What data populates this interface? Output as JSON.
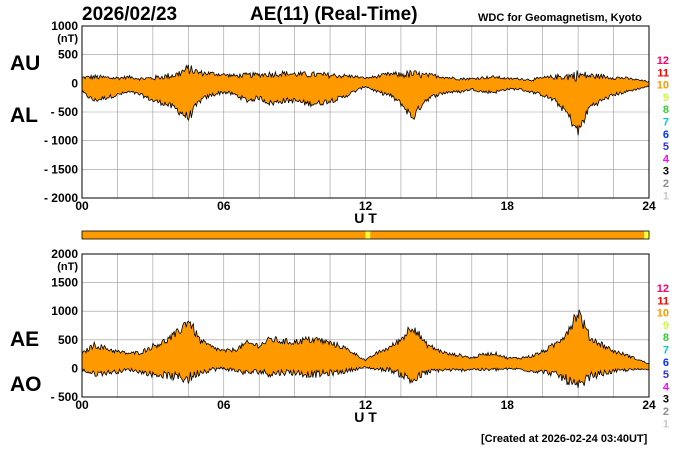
{
  "header": {
    "date": "2026/02/23",
    "title": "AE(11) (Real-Time)",
    "institution": "WDC for Geomagnetism, Kyoto"
  },
  "footer": {
    "created": "[Created at 2026-02-24 03:40UT]"
  },
  "colors": {
    "fill": "#ff9900",
    "status_orange": "#ff9900",
    "status_yellow": "#ffff33",
    "grid": "#9a9a9a",
    "station_count_colors": [
      "#c8c8c8",
      "#8c8c8c",
      "#000000",
      "#ff00ff",
      "#3333cc",
      "#0033ff",
      "#00cccc",
      "#33cc33",
      "#ccff33",
      "#ff9900",
      "#ff0000",
      "#ff0066"
    ]
  },
  "station_counts": [
    "12",
    "11",
    "10",
    "9",
    "8",
    "7",
    "6",
    "5",
    "4",
    "3",
    "2",
    "1"
  ],
  "chart_data": [
    {
      "type": "area",
      "panel": "AU/AL",
      "side_labels": [
        "AU",
        "AL"
      ],
      "units": "(nT)",
      "xlabel": "U T",
      "x_ticks": [
        "00",
        "06",
        "12",
        "18",
        "24"
      ],
      "xlim": [
        0,
        24
      ],
      "ylim": [
        -2000,
        1000
      ],
      "y_ticks": [
        "1000",
        "500",
        "0",
        "- 500",
        "- 1000",
        "- 1500",
        "- 2000"
      ],
      "grid": true,
      "series": [
        {
          "label": "AU",
          "x": [
            0,
            0.5,
            1,
            1.5,
            2,
            2.5,
            3,
            3.5,
            4,
            4.5,
            5,
            5.5,
            6,
            6.5,
            7,
            7.5,
            8,
            8.5,
            9,
            9.5,
            10,
            10.5,
            11,
            11.5,
            12,
            12.5,
            13,
            13.5,
            14,
            14.5,
            15,
            15.5,
            16,
            16.5,
            17,
            17.5,
            18,
            18.5,
            19,
            19.5,
            20,
            20.5,
            21,
            21.5,
            22,
            22.5,
            23,
            23.5,
            24
          ],
          "values": [
            100,
            110,
            100,
            90,
            110,
            80,
            90,
            120,
            150,
            250,
            180,
            170,
            150,
            130,
            140,
            150,
            160,
            170,
            160,
            150,
            150,
            140,
            130,
            120,
            90,
            120,
            160,
            150,
            160,
            140,
            130,
            100,
            80,
            80,
            100,
            110,
            80,
            80,
            60,
            90,
            110,
            120,
            140,
            130,
            120,
            100,
            90,
            60,
            30
          ]
        },
        {
          "label": "AL",
          "x": [
            0,
            0.5,
            1,
            1.5,
            2,
            2.5,
            3,
            3.5,
            4,
            4.5,
            5,
            5.5,
            6,
            6.5,
            7,
            7.5,
            8,
            8.5,
            9,
            9.5,
            10,
            10.5,
            11,
            11.5,
            12,
            12.5,
            13,
            13.5,
            14,
            14.5,
            15,
            15.5,
            16,
            16.5,
            17,
            17.5,
            18,
            18.5,
            19,
            19.5,
            20,
            20.5,
            21,
            21.5,
            22,
            22.5,
            23,
            23.5,
            24
          ],
          "values": [
            -150,
            -300,
            -250,
            -200,
            -150,
            -200,
            -300,
            -350,
            -450,
            -600,
            -300,
            -200,
            -150,
            -200,
            -300,
            -250,
            -350,
            -300,
            -300,
            -350,
            -350,
            -300,
            -250,
            -150,
            -50,
            -150,
            -200,
            -350,
            -600,
            -300,
            -200,
            -150,
            -150,
            -100,
            -150,
            -150,
            -100,
            -100,
            -150,
            -200,
            -300,
            -500,
            -850,
            -400,
            -300,
            -200,
            -150,
            -100,
            -50
          ]
        }
      ]
    },
    {
      "type": "area",
      "panel": "AE/AO",
      "side_labels": [
        "AE",
        "AO"
      ],
      "units": "(nT)",
      "xlabel": "U T",
      "x_ticks": [
        "00",
        "06",
        "12",
        "18",
        "24"
      ],
      "xlim": [
        0,
        24
      ],
      "ylim": [
        -500,
        2000
      ],
      "y_ticks": [
        "2000",
        "1500",
        "1000",
        "500",
        "0",
        "- 500"
      ],
      "grid": true,
      "series": [
        {
          "label": "AE",
          "x": [
            0,
            0.5,
            1,
            1.5,
            2,
            2.5,
            3,
            3.5,
            4,
            4.5,
            5,
            5.5,
            6,
            6.5,
            7,
            7.5,
            8,
            8.5,
            9,
            9.5,
            10,
            10.5,
            11,
            11.5,
            12,
            12.5,
            13,
            13.5,
            14,
            14.5,
            15,
            15.5,
            16,
            16.5,
            17,
            17.5,
            18,
            18.5,
            19,
            19.5,
            20,
            20.5,
            21,
            21.5,
            22,
            22.5,
            23,
            23.5,
            24
          ],
          "values": [
            250,
            410,
            350,
            290,
            260,
            280,
            390,
            470,
            600,
            850,
            480,
            370,
            300,
            330,
            440,
            400,
            510,
            470,
            460,
            500,
            500,
            440,
            380,
            270,
            140,
            270,
            360,
            500,
            760,
            440,
            330,
            250,
            230,
            180,
            250,
            260,
            180,
            180,
            210,
            290,
            410,
            620,
            990,
            530,
            420,
            300,
            240,
            160,
            80
          ]
        },
        {
          "label": "AO",
          "x": [
            0,
            0.5,
            1,
            1.5,
            2,
            2.5,
            3,
            3.5,
            4,
            4.5,
            5,
            5.5,
            6,
            6.5,
            7,
            7.5,
            8,
            8.5,
            9,
            9.5,
            10,
            10.5,
            11,
            11.5,
            12,
            12.5,
            13,
            13.5,
            14,
            14.5,
            15,
            15.5,
            16,
            16.5,
            17,
            17.5,
            18,
            18.5,
            19,
            19.5,
            20,
            20.5,
            21,
            21.5,
            22,
            22.5,
            23,
            23.5,
            24
          ],
          "values": [
            -25,
            -95,
            -75,
            -55,
            -20,
            -60,
            -105,
            -115,
            -150,
            -175,
            -60,
            -15,
            0,
            -35,
            -80,
            -50,
            -95,
            -65,
            -70,
            -100,
            -100,
            -80,
            -60,
            -15,
            20,
            -15,
            -20,
            -100,
            -220,
            -80,
            -35,
            -25,
            -35,
            -10,
            -25,
            -20,
            -10,
            -10,
            -45,
            -55,
            -95,
            -190,
            -355,
            -135,
            -90,
            -50,
            -30,
            -20,
            -10
          ]
        }
      ]
    }
  ],
  "status_bar": {
    "segments": [
      {
        "start": 0,
        "end": 12.0,
        "color": "#ff9900"
      },
      {
        "start": 12.0,
        "end": 12.2,
        "color": "#ffff33"
      },
      {
        "start": 12.2,
        "end": 23.8,
        "color": "#ff9900"
      },
      {
        "start": 23.8,
        "end": 24,
        "color": "#ffff33"
      }
    ]
  }
}
